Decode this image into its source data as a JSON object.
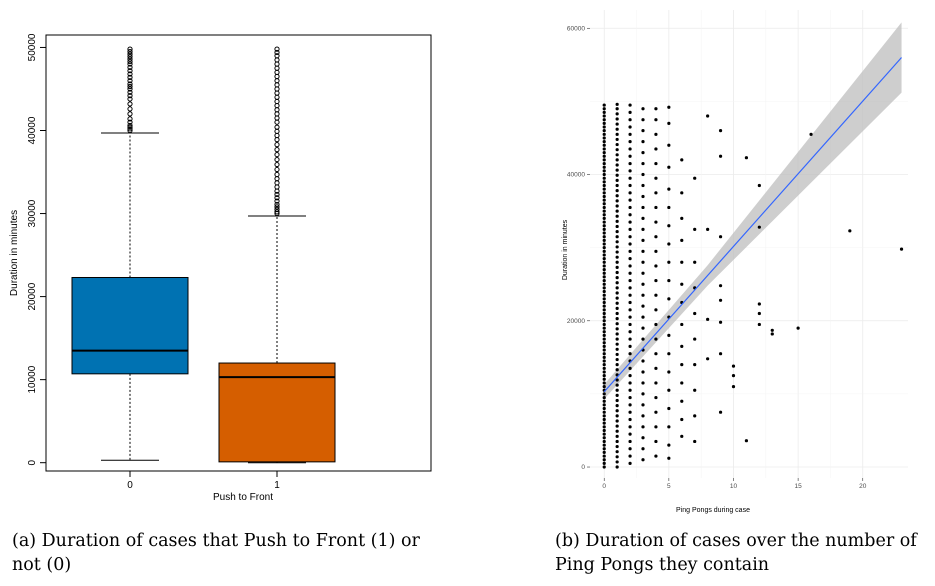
{
  "chart_data": [
    {
      "type": "box",
      "caption": "(a) Duration of cases that Push to Front (1) or not (0)",
      "xlabel": "Push to Front",
      "ylabel": "Duration in minutes",
      "categories": [
        "0",
        "1"
      ],
      "y_ticks": [
        0,
        10000,
        20000,
        30000,
        40000,
        50000
      ],
      "ylim": [
        -1000,
        51500
      ],
      "grid": false,
      "colors": [
        "#0072b2",
        "#d55e00"
      ],
      "boxes": [
        {
          "category": "0",
          "whisker_low": 300,
          "q1": 10700,
          "median": 13500,
          "q3": 22300,
          "whisker_high": 39700,
          "outliers": [
            40000,
            40200,
            40400,
            40600,
            41000,
            41400,
            42000,
            42600,
            43200,
            43800,
            44200,
            44600,
            45000,
            45300,
            45600,
            46000,
            46400,
            46800,
            47200,
            47600,
            48000,
            48300,
            48600,
            48900,
            49200,
            49500,
            49800
          ]
        },
        {
          "category": "1",
          "whisker_low": 0,
          "q1": 100,
          "median": 10300,
          "q3": 12000,
          "whisker_high": 29700,
          "outliers": [
            30000,
            30200,
            30500,
            30800,
            31100,
            31500,
            31900,
            32300,
            32700,
            33200,
            33700,
            34200,
            34700,
            35300,
            35900,
            36500,
            37100,
            37700,
            38300,
            38900,
            39400,
            39900,
            40400,
            41000,
            41500,
            42000,
            42500,
            43000,
            43500,
            44000,
            44500,
            45000,
            45500,
            46000,
            46500,
            47000,
            47500,
            48000,
            48500,
            49000,
            49400,
            49800
          ]
        }
      ]
    },
    {
      "type": "scatter",
      "caption": "(b) Duration of cases over the number of Ping Pongs they contain",
      "xlabel": "Ping Pongs during case",
      "ylabel": "Duration in minutes",
      "x_ticks": [
        0,
        5,
        10,
        15,
        20
      ],
      "y_ticks": [
        0,
        20000,
        40000,
        60000
      ],
      "xlim": [
        -1.1,
        23.5
      ],
      "ylim": [
        -1500,
        62500
      ],
      "grid": true,
      "colors": {
        "points": "#000000",
        "line": "#3366ff",
        "band": "#bdbdbd"
      },
      "trend_line": {
        "x": [
          0,
          23
        ],
        "y": [
          10300,
          56000
        ]
      },
      "confidence_band": {
        "x": [
          0,
          8,
          23
        ],
        "lower": [
          9300,
          24800,
          51200
        ],
        "upper": [
          11300,
          27600,
          60800
        ]
      },
      "columns": [
        {
          "x": 0,
          "values": [
            0,
            500,
            1000,
            1500,
            2000,
            2500,
            3000,
            3500,
            4000,
            4500,
            5000,
            5500,
            6000,
            6500,
            7000,
            7500,
            8000,
            8500,
            9000,
            9500,
            10000,
            10500,
            11000,
            11500,
            12000,
            12500,
            13000,
            13500,
            14000,
            14500,
            15000,
            15500,
            16000,
            16500,
            17000,
            17500,
            18000,
            18500,
            19000,
            19500,
            20000,
            20500,
            21000,
            21500,
            22000,
            22500,
            23000,
            23500,
            24000,
            24500,
            25000,
            25500,
            26000,
            26500,
            27000,
            27500,
            28000,
            28500,
            29000,
            29500,
            30000,
            30500,
            31000,
            31500,
            32000,
            32500,
            33000,
            33500,
            34000,
            34500,
            35000,
            35500,
            36000,
            36500,
            37000,
            37500,
            38000,
            38500,
            39000,
            39500,
            40000,
            40500,
            41000,
            41500,
            42000,
            42500,
            43000,
            43500,
            44000,
            44500,
            45000,
            45500,
            46000,
            46500,
            47000,
            47500,
            48000,
            48500,
            49000,
            49500
          ]
        },
        {
          "x": 1,
          "values": [
            0,
            700,
            1400,
            2100,
            2800,
            3500,
            4200,
            4900,
            5600,
            6300,
            7000,
            7700,
            8400,
            9100,
            9800,
            10500,
            11200,
            11900,
            12600,
            13300,
            14000,
            14700,
            15400,
            16100,
            16800,
            17500,
            18200,
            18900,
            19600,
            20300,
            21000,
            21700,
            22400,
            23100,
            23800,
            24500,
            25200,
            25900,
            26600,
            27300,
            28000,
            28700,
            29400,
            30100,
            30800,
            31500,
            32200,
            32900,
            33600,
            34300,
            35000,
            35700,
            36400,
            37100,
            37800,
            38500,
            39200,
            39900,
            40600,
            41300,
            42000,
            42700,
            43400,
            44100,
            44800,
            45500,
            46200,
            46900,
            47600,
            48300,
            49000,
            49600
          ]
        },
        {
          "x": 2,
          "values": [
            500,
            1500,
            2500,
            3500,
            4500,
            5500,
            6500,
            7500,
            8500,
            9500,
            10500,
            11500,
            12500,
            13500,
            14500,
            15500,
            16500,
            17500,
            18500,
            19500,
            20500,
            21500,
            22500,
            23500,
            24500,
            25500,
            26500,
            27500,
            28500,
            29500,
            30500,
            31500,
            32500,
            33500,
            34500,
            35500,
            36500,
            37500,
            38500,
            39500,
            40500,
            41500,
            42500,
            43500,
            44500,
            45500,
            46500,
            47500,
            48500,
            49500
          ]
        },
        {
          "x": 3,
          "values": [
            1000,
            2500,
            4000,
            5500,
            7000,
            8500,
            10000,
            11500,
            13000,
            14500,
            16000,
            17500,
            19000,
            20500,
            22000,
            23500,
            25000,
            26500,
            28000,
            29500,
            31000,
            32500,
            34000,
            35500,
            37000,
            38500,
            40000,
            41500,
            43000,
            44500,
            46000,
            47500,
            49000
          ]
        },
        {
          "x": 4,
          "values": [
            1500,
            3500,
            5500,
            7500,
            9500,
            11500,
            13500,
            15500,
            17500,
            19500,
            21500,
            23500,
            25500,
            27500,
            29500,
            31500,
            33500,
            35500,
            37500,
            39500,
            41500,
            43500,
            45500,
            47500,
            49000
          ]
        },
        {
          "x": 5,
          "values": [
            1200,
            3000,
            5500,
            8000,
            10500,
            13000,
            15500,
            18000,
            20500,
            23000,
            25500,
            28000,
            30500,
            33000,
            35500,
            38000,
            41000,
            44000,
            47000,
            49200
          ]
        },
        {
          "x": 6,
          "values": [
            4200,
            6500,
            9000,
            11500,
            14000,
            16500,
            19500,
            22500,
            25000,
            28000,
            31000,
            34000,
            37500,
            42000
          ]
        },
        {
          "x": 7,
          "values": [
            3500,
            7000,
            10500,
            14000,
            17500,
            21000,
            24500,
            28000,
            32500,
            39500
          ]
        }
      ],
      "sparse_points": [
        {
          "x": 8,
          "y": 14800
        },
        {
          "x": 8,
          "y": 20200
        },
        {
          "x": 8,
          "y": 32500
        },
        {
          "x": 8,
          "y": 48000
        },
        {
          "x": 9,
          "y": 7500
        },
        {
          "x": 9,
          "y": 15500
        },
        {
          "x": 9,
          "y": 19800
        },
        {
          "x": 9,
          "y": 22800
        },
        {
          "x": 9,
          "y": 24800
        },
        {
          "x": 9,
          "y": 31500
        },
        {
          "x": 9,
          "y": 42500
        },
        {
          "x": 9,
          "y": 46000
        },
        {
          "x": 10,
          "y": 11000
        },
        {
          "x": 10,
          "y": 12500
        },
        {
          "x": 10,
          "y": 13800
        },
        {
          "x": 11,
          "y": 3600
        },
        {
          "x": 11,
          "y": 42300
        },
        {
          "x": 12,
          "y": 19500
        },
        {
          "x": 12,
          "y": 21000
        },
        {
          "x": 12,
          "y": 22300
        },
        {
          "x": 12,
          "y": 32800
        },
        {
          "x": 12,
          "y": 38500
        },
        {
          "x": 13,
          "y": 18200
        },
        {
          "x": 13,
          "y": 18700
        },
        {
          "x": 15,
          "y": 19000
        },
        {
          "x": 16,
          "y": 45500
        },
        {
          "x": 19,
          "y": 32300
        },
        {
          "x": 23,
          "y": 29800
        }
      ]
    }
  ]
}
